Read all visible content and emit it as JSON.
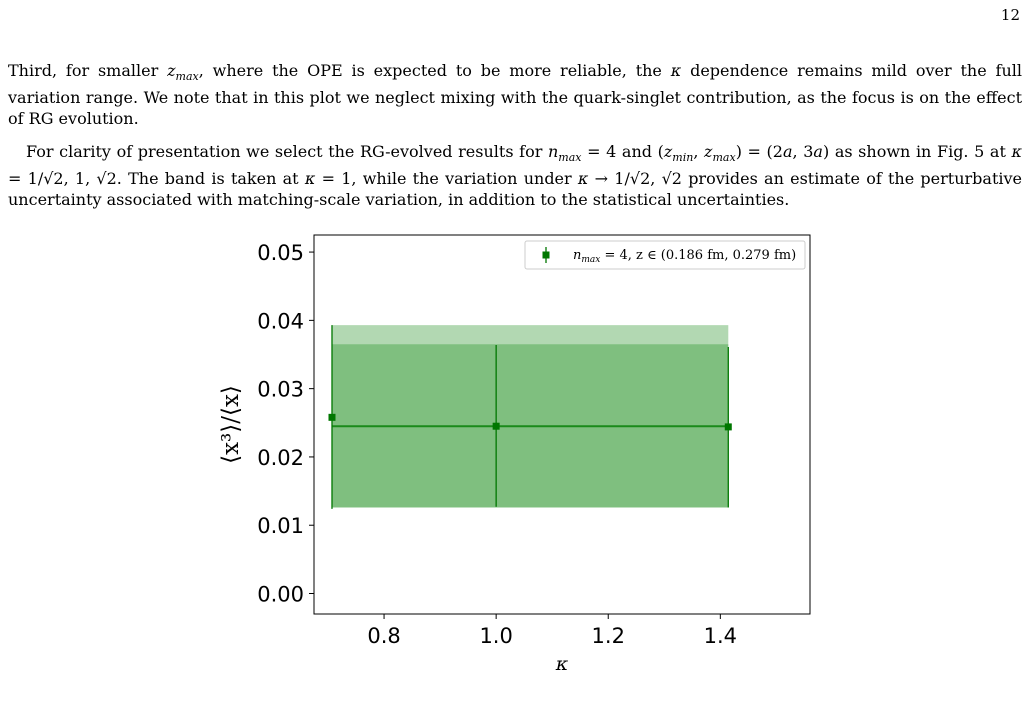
{
  "page": {
    "number": "12",
    "paragraph1": {
      "a": "Third, for smaller ",
      "zmax": "z",
      "zmax_sub": "max",
      "b": ", where the OPE is expected to be more reliable, the ",
      "kappa": "κ",
      "c": " dependence remains mild over the full variation range. We note that in this plot we neglect mixing with the quark-singlet contribution, as the focus is on the effect of RG evolution."
    },
    "paragraph2": {
      "a": "For clarity of presentation we select the RG-evolved results for ",
      "nmax": "n",
      "nmax_sub": "max",
      "b": " = 4 and (",
      "zmin": "z",
      "zmin_sub": "min",
      "c": ", ",
      "zmax": "z",
      "zmax_sub": "max",
      "d": ") = (2",
      "a1": "a",
      "e": ", 3",
      "a2": "a",
      "f": ") as shown in Fig. 5 at ",
      "kappa1": "κ",
      "g": " = 1/√2, 1, √2. The band is taken at ",
      "kappa2": "κ",
      "h": " = 1, while the variation under ",
      "kappa3": "κ",
      "i": " → 1/√2, √2 provides an estimate of the perturbative uncertainty associated with matching-scale variation, in addition to the statistical uncertainties."
    }
  },
  "chart_data": {
    "type": "scatter",
    "xlabel": "κ",
    "ylabel": "⟨x³⟩/⟨x⟩",
    "xlim": [
      0.675,
      1.56
    ],
    "ylim": [
      -0.003,
      0.0525
    ],
    "xticks": [
      0.8,
      1.0,
      1.2,
      1.4
    ],
    "xtick_labels": [
      "0.8",
      "1.0",
      "1.2",
      "1.4"
    ],
    "yticks": [
      0.0,
      0.01,
      0.02,
      0.03,
      0.04,
      0.05
    ],
    "ytick_labels": [
      "0.00",
      "0.01",
      "0.02",
      "0.03",
      "0.04",
      "0.05"
    ],
    "grid": false,
    "legend_position": "top-right",
    "series": [
      {
        "name": "n_max = 4, z ∈ (0.186 fm, 0.279 fm)",
        "color": "#007700",
        "x": [
          0.7071,
          1.0,
          1.4142
        ],
        "y": [
          0.0258,
          0.0245,
          0.0244
        ],
        "yerr_low": [
          0.0124,
          0.0127,
          0.0126
        ],
        "yerr_high": [
          0.0393,
          0.0364,
          0.0361
        ]
      }
    ],
    "band": {
      "x_range": [
        0.7071,
        1.4142
      ],
      "central": 0.0245,
      "inner": [
        0.0126,
        0.0365
      ],
      "outer": [
        0.0126,
        0.0393
      ],
      "inner_color": "#7fbf7f",
      "outer_color": "#b2d8b2"
    },
    "legend": {
      "n": "n",
      "n_sub": "max",
      "rest": " = 4,  z ∈ (0.186 fm, 0.279 fm)"
    }
  }
}
